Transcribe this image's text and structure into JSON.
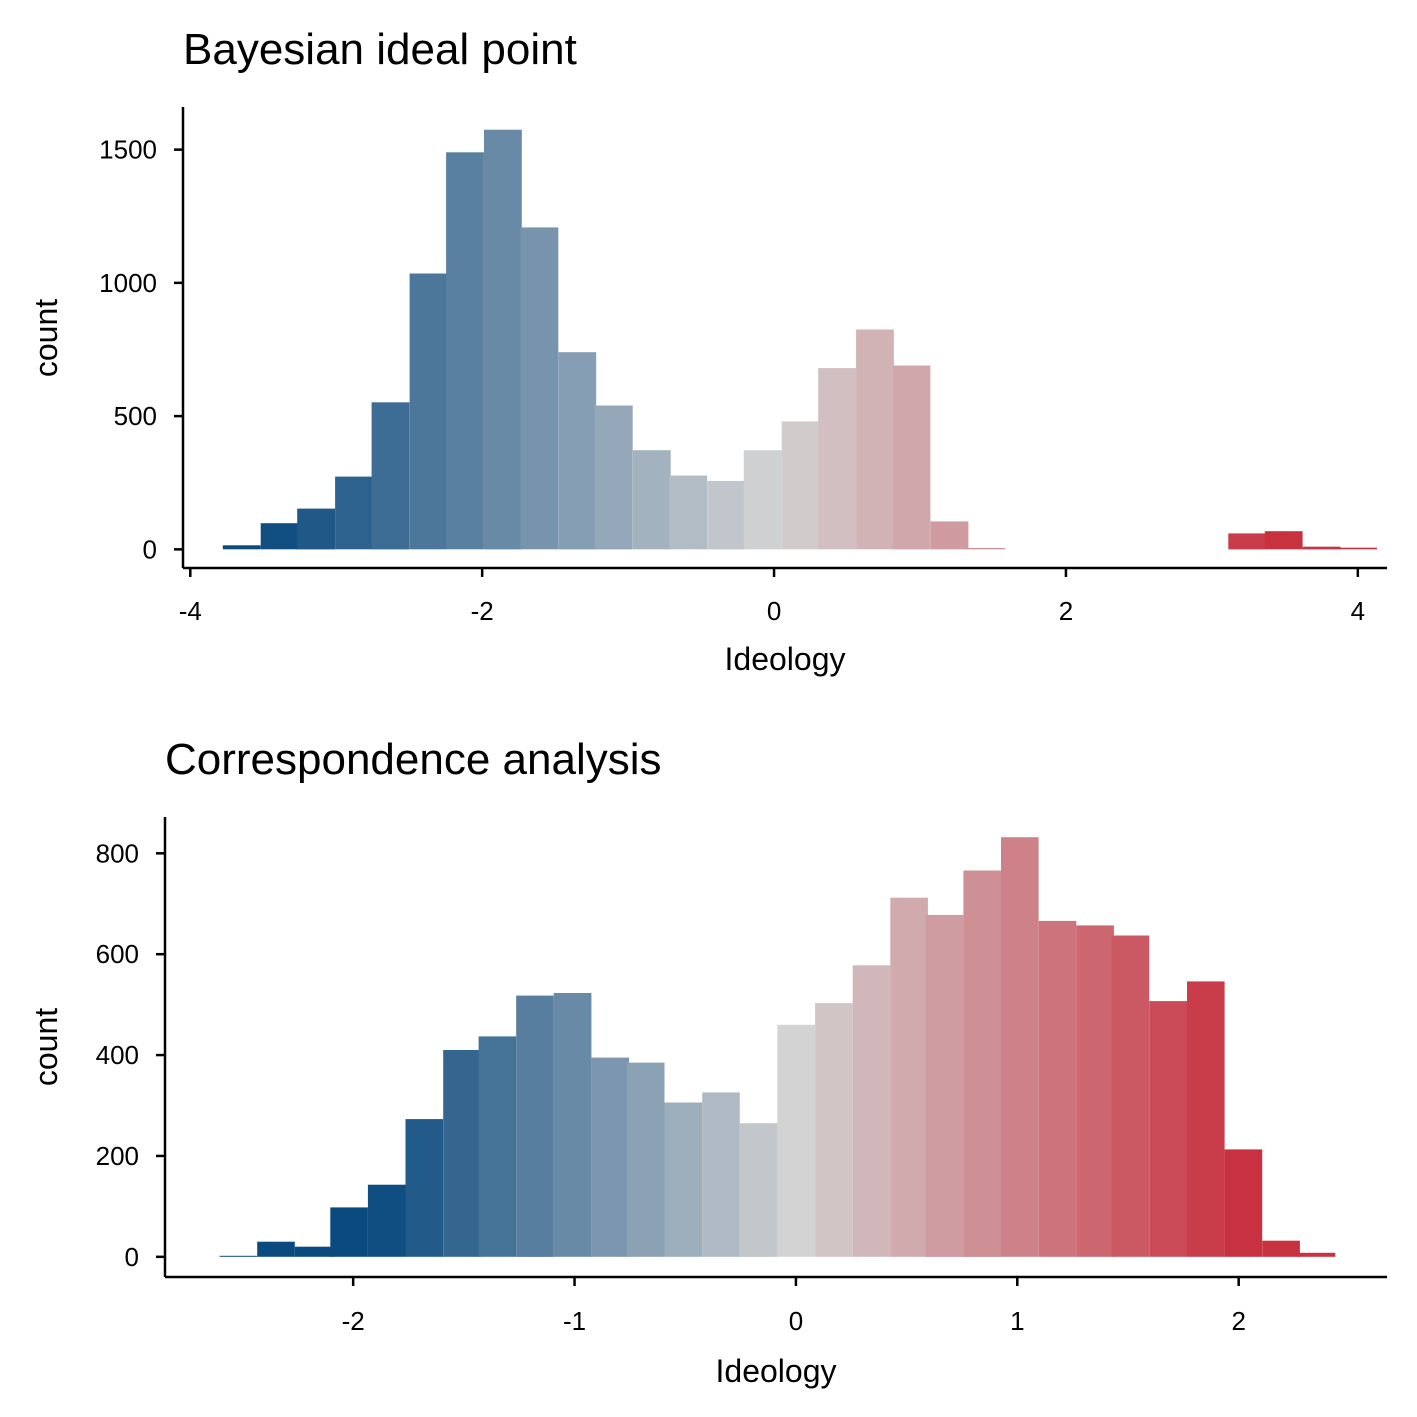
{
  "chart_data": [
    {
      "type": "bar",
      "title": "Bayesian ideal point",
      "xlabel": "Ideology",
      "ylabel": "count",
      "xlim": [
        -4.05,
        4.2
      ],
      "ylim": [
        -70,
        1660
      ],
      "xticks": [
        -4,
        -2,
        0,
        2,
        4
      ],
      "xtick_labels": [
        "-4",
        "-2",
        "0",
        "2",
        "4"
      ],
      "yticks": [
        0,
        500,
        1000,
        1500
      ],
      "ytick_labels": [
        "0",
        "500",
        "1000",
        "1500"
      ],
      "bin_width": 0.255,
      "color_scale": {
        "low": "#0b4a7f",
        "mid": "#d3d3d3",
        "high": "#c8313f",
        "min": -3.5,
        "max": 3.5
      },
      "bins": [
        {
          "x": -3.65,
          "count": 15
        },
        {
          "x": -3.39,
          "count": 98
        },
        {
          "x": -3.14,
          "count": 153
        },
        {
          "x": -2.88,
          "count": 273
        },
        {
          "x": -2.63,
          "count": 552
        },
        {
          "x": -2.37,
          "count": 1035
        },
        {
          "x": -2.12,
          "count": 1490
        },
        {
          "x": -1.86,
          "count": 1575
        },
        {
          "x": -1.61,
          "count": 1208
        },
        {
          "x": -1.35,
          "count": 740
        },
        {
          "x": -1.1,
          "count": 540
        },
        {
          "x": -0.84,
          "count": 372
        },
        {
          "x": -0.59,
          "count": 277
        },
        {
          "x": -0.33,
          "count": 257
        },
        {
          "x": -0.08,
          "count": 372
        },
        {
          "x": 0.18,
          "count": 480
        },
        {
          "x": 0.43,
          "count": 680
        },
        {
          "x": 0.69,
          "count": 825
        },
        {
          "x": 0.94,
          "count": 690
        },
        {
          "x": 1.2,
          "count": 105
        },
        {
          "x": 1.45,
          "count": 5
        },
        {
          "x": 3.24,
          "count": 60
        },
        {
          "x": 3.49,
          "count": 68
        },
        {
          "x": 3.75,
          "count": 10
        },
        {
          "x": 4.0,
          "count": 6
        }
      ]
    },
    {
      "type": "bar",
      "title": "Correspondence analysis",
      "xlabel": "Ideology",
      "ylabel": "count",
      "xlim": [
        -2.85,
        2.67
      ],
      "ylim": [
        -40,
        872
      ],
      "xticks": [
        -2,
        -1,
        0,
        1,
        2
      ],
      "xtick_labels": [
        "-2",
        "-1",
        "0",
        "1",
        "2"
      ],
      "yticks": [
        0,
        200,
        400,
        600,
        800
      ],
      "ytick_labels": [
        "0",
        "200",
        "400",
        "600",
        "800"
      ],
      "bin_width": 0.167,
      "color_scale": {
        "low": "#0b4a7f",
        "mid": "#d3d3d3",
        "high": "#c8313f",
        "min": -1.9,
        "max": 2.0
      },
      "bins": [
        {
          "x": -2.52,
          "count": 2
        },
        {
          "x": -2.35,
          "count": 30
        },
        {
          "x": -2.18,
          "count": 20
        },
        {
          "x": -2.02,
          "count": 98
        },
        {
          "x": -1.85,
          "count": 143
        },
        {
          "x": -1.68,
          "count": 273
        },
        {
          "x": -1.51,
          "count": 410
        },
        {
          "x": -1.35,
          "count": 437
        },
        {
          "x": -1.18,
          "count": 518
        },
        {
          "x": -1.01,
          "count": 523
        },
        {
          "x": -0.84,
          "count": 395
        },
        {
          "x": -0.68,
          "count": 385
        },
        {
          "x": -0.51,
          "count": 306
        },
        {
          "x": -0.34,
          "count": 326
        },
        {
          "x": -0.17,
          "count": 265
        },
        {
          "x": 0.0,
          "count": 460
        },
        {
          "x": 0.17,
          "count": 503
        },
        {
          "x": 0.34,
          "count": 578
        },
        {
          "x": 0.51,
          "count": 712
        },
        {
          "x": 0.67,
          "count": 678
        },
        {
          "x": 0.84,
          "count": 766
        },
        {
          "x": 1.01,
          "count": 832
        },
        {
          "x": 1.18,
          "count": 666
        },
        {
          "x": 1.35,
          "count": 657
        },
        {
          "x": 1.51,
          "count": 637
        },
        {
          "x": 1.68,
          "count": 507
        },
        {
          "x": 1.85,
          "count": 546
        },
        {
          "x": 2.02,
          "count": 213
        },
        {
          "x": 2.19,
          "count": 32
        },
        {
          "x": 2.35,
          "count": 8
        }
      ]
    }
  ]
}
